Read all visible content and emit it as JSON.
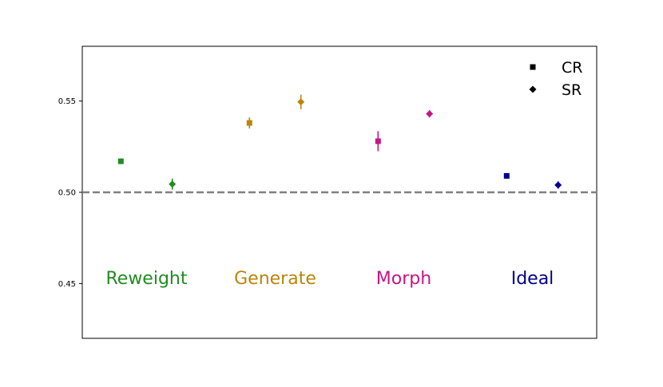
{
  "chart_data": {
    "type": "scatter",
    "ylim": [
      0.42,
      0.58
    ],
    "yticks": [
      0.45,
      0.5,
      0.55
    ],
    "ytick_labels": [
      "0.45",
      "0.50",
      "0.55"
    ],
    "reference_line": {
      "y": 0.5,
      "style": "dashed",
      "color": "#808080"
    },
    "groups": [
      {
        "name": "Reweight",
        "color": "#228B22",
        "CR": {
          "value": 0.517,
          "err": 0.0015
        },
        "SR": {
          "value": 0.5045,
          "err": 0.003
        }
      },
      {
        "name": "Generate",
        "color": "#B8860B",
        "CR": {
          "value": 0.538,
          "err": 0.003
        },
        "SR": {
          "value": 0.5495,
          "err": 0.004
        }
      },
      {
        "name": "Morph",
        "color": "#C71585",
        "CR": {
          "value": 0.528,
          "err": 0.0055
        },
        "SR": {
          "value": 0.543,
          "err": 0.002
        }
      },
      {
        "name": "Ideal",
        "color": "#00008B",
        "CR": {
          "value": 0.509,
          "err": 0.0015
        },
        "SR": {
          "value": 0.504,
          "err": 0.002
        }
      }
    ],
    "legend": {
      "placement": "top-right",
      "entries": [
        {
          "label": "CR",
          "marker": "square"
        },
        {
          "label": "SR",
          "marker": "diamond"
        }
      ]
    },
    "grid": false
  }
}
